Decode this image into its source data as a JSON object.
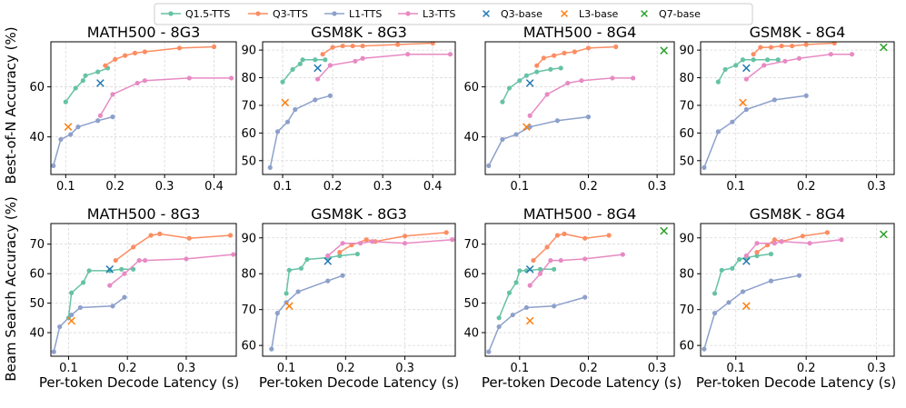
{
  "figure": {
    "ylabel_top": "Best-of-N Accuracy (%)",
    "ylabel_bottom": "Beam Search Accuracy (%)",
    "xlabel": "Per-token Decode Latency (s)"
  },
  "legend": [
    {
      "name": "Q1.5-TTS",
      "marker": "circle",
      "color": "#66c2a5"
    },
    {
      "name": "Q3-TTS",
      "marker": "circle",
      "color": "#fc8d62"
    },
    {
      "name": "L1-TTS",
      "marker": "circle",
      "color": "#8da0cb"
    },
    {
      "name": "L3-TTS",
      "marker": "circle",
      "color": "#e78ac3"
    },
    {
      "name": "Q3-base",
      "marker": "x",
      "color": "#1f77b4"
    },
    {
      "name": "L3-base",
      "marker": "x",
      "color": "#ff7f0e"
    },
    {
      "name": "Q7-base",
      "marker": "x",
      "color": "#2ca02c"
    }
  ],
  "chart_data": [
    {
      "type": "line",
      "title": "MATH500 - 8G3",
      "row": "Best-of-N",
      "xlim": [
        0.07,
        0.445
      ],
      "ylim": [
        25,
        78
      ],
      "xticks": [
        0.1,
        0.2,
        0.3,
        0.4
      ],
      "yticks": [
        40,
        60
      ],
      "series": [
        {
          "name": "Q1.5-TTS",
          "x": [
            0.1,
            0.12,
            0.135,
            0.14,
            0.165,
            0.185
          ],
          "y": [
            54,
            59.5,
            62.5,
            64.5,
            66,
            67.5
          ]
        },
        {
          "name": "Q3-TTS",
          "x": [
            0.18,
            0.2,
            0.22,
            0.24,
            0.26,
            0.33,
            0.4
          ],
          "y": [
            68.5,
            71,
            72.5,
            73.5,
            74,
            75.5,
            76
          ]
        },
        {
          "name": "L1-TTS",
          "x": [
            0.075,
            0.09,
            0.11,
            0.125,
            0.165,
            0.195
          ],
          "y": [
            28.5,
            39,
            41,
            44,
            46.5,
            48
          ]
        },
        {
          "name": "L3-TTS",
          "x": [
            0.17,
            0.195,
            0.245,
            0.26,
            0.35,
            0.435
          ],
          "y": [
            48.5,
            57,
            61.5,
            62.5,
            63.5,
            63.5
          ]
        },
        {
          "name": "Q3-base",
          "x": [
            0.17
          ],
          "y": [
            61.5
          ]
        },
        {
          "name": "L3-base",
          "x": [
            0.105
          ],
          "y": [
            44
          ]
        }
      ]
    },
    {
      "type": "line",
      "title": "GSM8K - 8G3",
      "row": "Best-of-N",
      "xlim": [
        0.06,
        0.445
      ],
      "ylim": [
        45,
        93
      ],
      "xticks": [
        0.1,
        0.2,
        0.3,
        0.4
      ],
      "yticks": [
        50,
        60,
        70,
        80,
        90
      ],
      "series": [
        {
          "name": "Q1.5-TTS",
          "x": [
            0.1,
            0.12,
            0.135,
            0.14,
            0.165,
            0.185
          ],
          "y": [
            78.5,
            83,
            85,
            86.5,
            86.5,
            86.5
          ]
        },
        {
          "name": "Q3-TTS",
          "x": [
            0.18,
            0.2,
            0.22,
            0.24,
            0.26,
            0.33,
            0.4
          ],
          "y": [
            88.5,
            91,
            91.5,
            91.5,
            91.5,
            92,
            92.5
          ]
        },
        {
          "name": "L1-TTS",
          "x": [
            0.075,
            0.09,
            0.11,
            0.125,
            0.165,
            0.195
          ],
          "y": [
            47.5,
            60.5,
            64,
            68.5,
            72,
            73.5
          ]
        },
        {
          "name": "L3-TTS",
          "x": [
            0.17,
            0.195,
            0.245,
            0.26,
            0.35,
            0.435
          ],
          "y": [
            79.5,
            84.5,
            86,
            87,
            88.5,
            88.5
          ]
        },
        {
          "name": "Q3-base",
          "x": [
            0.17
          ],
          "y": [
            83.5
          ]
        },
        {
          "name": "L3-base",
          "x": [
            0.105
          ],
          "y": [
            71
          ]
        }
      ]
    },
    {
      "type": "line",
      "title": "MATH500 - 8G4",
      "row": "Best-of-N",
      "xlim": [
        0.05,
        0.325
      ],
      "ylim": [
        25,
        78
      ],
      "xticks": [
        0.1,
        0.2,
        0.3
      ],
      "yticks": [
        40,
        60
      ],
      "series": [
        {
          "name": "Q1.5-TTS",
          "x": [
            0.075,
            0.085,
            0.1,
            0.11,
            0.125,
            0.145,
            0.16
          ],
          "y": [
            54,
            59.5,
            62.5,
            64.5,
            66,
            67,
            67.5
          ]
        },
        {
          "name": "Q3-TTS",
          "x": [
            0.125,
            0.135,
            0.15,
            0.165,
            0.18,
            0.2,
            0.24
          ],
          "y": [
            68.5,
            71.5,
            72.5,
            73.5,
            74,
            75.5,
            76
          ]
        },
        {
          "name": "L1-TTS",
          "x": [
            0.055,
            0.075,
            0.095,
            0.115,
            0.155,
            0.2
          ],
          "y": [
            28.5,
            39,
            41,
            44,
            46.5,
            48
          ]
        },
        {
          "name": "L3-TTS",
          "x": [
            0.115,
            0.14,
            0.17,
            0.19,
            0.235,
            0.265
          ],
          "y": [
            48.5,
            57,
            61.5,
            62.5,
            63.5,
            63.5
          ]
        },
        {
          "name": "Q3-base",
          "x": [
            0.115
          ],
          "y": [
            61.5
          ]
        },
        {
          "name": "L3-base",
          "x": [
            0.11
          ],
          "y": [
            44
          ]
        },
        {
          "name": "Q7-base",
          "x": [
            0.31
          ],
          "y": [
            74.5
          ]
        }
      ]
    },
    {
      "type": "line",
      "title": "GSM8K - 8G4",
      "row": "Best-of-N",
      "xlim": [
        0.05,
        0.325
      ],
      "ylim": [
        45,
        93
      ],
      "xticks": [
        0.1,
        0.2,
        0.3
      ],
      "yticks": [
        50,
        60,
        70,
        80,
        90
      ],
      "series": [
        {
          "name": "Q1.5-TTS",
          "x": [
            0.075,
            0.085,
            0.1,
            0.11,
            0.125,
            0.145,
            0.16
          ],
          "y": [
            78.5,
            83,
            84.5,
            86.5,
            86.5,
            86.5,
            86.5
          ]
        },
        {
          "name": "Q3-TTS",
          "x": [
            0.125,
            0.135,
            0.15,
            0.165,
            0.18,
            0.2,
            0.24
          ],
          "y": [
            88.5,
            91,
            91,
            91.5,
            91.5,
            92,
            92.5
          ]
        },
        {
          "name": "L1-TTS",
          "x": [
            0.055,
            0.075,
            0.095,
            0.115,
            0.155,
            0.2
          ],
          "y": [
            47.5,
            60.5,
            64,
            68.5,
            72,
            73.5
          ]
        },
        {
          "name": "L3-TTS",
          "x": [
            0.115,
            0.14,
            0.17,
            0.19,
            0.235,
            0.265
          ],
          "y": [
            79.5,
            84.5,
            86,
            87,
            88.5,
            88.5
          ]
        },
        {
          "name": "Q3-base",
          "x": [
            0.115
          ],
          "y": [
            83.5
          ]
        },
        {
          "name": "L3-base",
          "x": [
            0.11
          ],
          "y": [
            71
          ]
        },
        {
          "name": "Q7-base",
          "x": [
            0.31
          ],
          "y": [
            91
          ]
        }
      ]
    },
    {
      "type": "line",
      "title": "MATH500 - 8G3",
      "row": "Beam Search",
      "xlim": [
        0.07,
        0.385
      ],
      "ylim": [
        32,
        77
      ],
      "xticks": [
        0.1,
        0.2,
        0.3
      ],
      "yticks": [
        40,
        50,
        60,
        70
      ],
      "series": [
        {
          "name": "Q1.5-TTS",
          "x": [
            0.1,
            0.105,
            0.125,
            0.135,
            0.17,
            0.19,
            0.21
          ],
          "y": [
            45,
            53.5,
            57,
            61,
            61,
            61.5,
            61.5
          ]
        },
        {
          "name": "Q3-TTS",
          "x": [
            0.18,
            0.21,
            0.24,
            0.255,
            0.305,
            0.375
          ],
          "y": [
            64.5,
            69,
            73,
            73.5,
            72,
            73
          ]
        },
        {
          "name": "L1-TTS",
          "x": [
            0.075,
            0.085,
            0.105,
            0.12,
            0.175,
            0.195
          ],
          "y": [
            33.5,
            42,
            46,
            48.5,
            49,
            52
          ]
        },
        {
          "name": "L3-TTS",
          "x": [
            0.17,
            0.195,
            0.22,
            0.23,
            0.3,
            0.38
          ],
          "y": [
            56,
            60,
            64.5,
            64.5,
            65,
            66.5
          ]
        },
        {
          "name": "Q3-base",
          "x": [
            0.17
          ],
          "y": [
            61.5
          ]
        },
        {
          "name": "L3-base",
          "x": [
            0.105
          ],
          "y": [
            44
          ]
        }
      ]
    },
    {
      "type": "line",
      "title": "GSM8K - 8G3",
      "row": "Beam Search",
      "xlim": [
        0.06,
        0.385
      ],
      "ylim": [
        57,
        94
      ],
      "xticks": [
        0.1,
        0.2,
        0.3
      ],
      "yticks": [
        60,
        70,
        80,
        90
      ],
      "series": [
        {
          "name": "Q1.5-TTS",
          "x": [
            0.1,
            0.105,
            0.125,
            0.135,
            0.17,
            0.19,
            0.22
          ],
          "y": [
            74.5,
            81,
            81.5,
            84,
            84.5,
            85,
            85.5
          ]
        },
        {
          "name": "Q3-TTS",
          "x": [
            0.19,
            0.21,
            0.235,
            0.25,
            0.3,
            0.37
          ],
          "y": [
            86,
            88,
            89.5,
            89,
            90.5,
            91.5
          ]
        },
        {
          "name": "L1-TTS",
          "x": [
            0.075,
            0.085,
            0.1,
            0.12,
            0.17,
            0.195
          ],
          "y": [
            59,
            69,
            72,
            75,
            78,
            79.5
          ]
        },
        {
          "name": "L3-TTS",
          "x": [
            0.17,
            0.195,
            0.225,
            0.245,
            0.3,
            0.38
          ],
          "y": [
            85,
            88.5,
            88.5,
            89,
            88.5,
            89.5
          ]
        },
        {
          "name": "Q3-base",
          "x": [
            0.17
          ],
          "y": [
            83.5
          ]
        },
        {
          "name": "L3-base",
          "x": [
            0.105
          ],
          "y": [
            71
          ]
        }
      ]
    },
    {
      "type": "line",
      "title": "MATH500 - 8G4",
      "row": "Beam Search",
      "xlim": [
        0.05,
        0.325
      ],
      "ylim": [
        32,
        77
      ],
      "xticks": [
        0.1,
        0.2,
        0.3
      ],
      "yticks": [
        40,
        50,
        60,
        70
      ],
      "series": [
        {
          "name": "Q1.5-TTS",
          "x": [
            0.07,
            0.085,
            0.095,
            0.1,
            0.11,
            0.13,
            0.15
          ],
          "y": [
            45,
            53.5,
            57,
            61,
            61,
            61.5,
            61.5
          ]
        },
        {
          "name": "Q3-TTS",
          "x": [
            0.12,
            0.14,
            0.155,
            0.165,
            0.195,
            0.23
          ],
          "y": [
            64.5,
            69,
            73,
            73.5,
            72,
            73
          ]
        },
        {
          "name": "L1-TTS",
          "x": [
            0.055,
            0.07,
            0.09,
            0.11,
            0.15,
            0.195
          ],
          "y": [
            33.5,
            42,
            46,
            48.5,
            49,
            52
          ]
        },
        {
          "name": "L3-TTS",
          "x": [
            0.115,
            0.13,
            0.145,
            0.16,
            0.195,
            0.25
          ],
          "y": [
            56,
            60,
            64.5,
            64.5,
            65,
            66.5
          ]
        },
        {
          "name": "Q3-base",
          "x": [
            0.115
          ],
          "y": [
            61.5
          ]
        },
        {
          "name": "L3-base",
          "x": [
            0.115
          ],
          "y": [
            44
          ]
        },
        {
          "name": "Q7-base",
          "x": [
            0.31
          ],
          "y": [
            74.5
          ]
        }
      ]
    },
    {
      "type": "line",
      "title": "GSM8K - 8G4",
      "row": "Beam Search",
      "xlim": [
        0.05,
        0.325
      ],
      "ylim": [
        57,
        94
      ],
      "xticks": [
        0.1,
        0.2,
        0.3
      ],
      "yticks": [
        60,
        70,
        80,
        90
      ],
      "series": [
        {
          "name": "Q1.5-TTS",
          "x": [
            0.07,
            0.08,
            0.095,
            0.105,
            0.115,
            0.13,
            0.15
          ],
          "y": [
            74.5,
            81,
            81.5,
            84,
            84.5,
            85,
            85.5
          ]
        },
        {
          "name": "Q3-TTS",
          "x": [
            0.13,
            0.145,
            0.155,
            0.165,
            0.195,
            0.23
          ],
          "y": [
            86,
            88,
            89.5,
            89,
            90.5,
            91.5
          ]
        },
        {
          "name": "L1-TTS",
          "x": [
            0.055,
            0.07,
            0.09,
            0.11,
            0.15,
            0.19
          ],
          "y": [
            59,
            69,
            72,
            75,
            78,
            79.5
          ]
        },
        {
          "name": "L3-TTS",
          "x": [
            0.115,
            0.13,
            0.155,
            0.165,
            0.205,
            0.25
          ],
          "y": [
            85,
            88.5,
            88.5,
            89,
            88.5,
            89.5
          ]
        },
        {
          "name": "Q3-base",
          "x": [
            0.115
          ],
          "y": [
            83.5
          ]
        },
        {
          "name": "L3-base",
          "x": [
            0.115
          ],
          "y": [
            71
          ]
        },
        {
          "name": "Q7-base",
          "x": [
            0.31
          ],
          "y": [
            91
          ]
        }
      ]
    }
  ]
}
